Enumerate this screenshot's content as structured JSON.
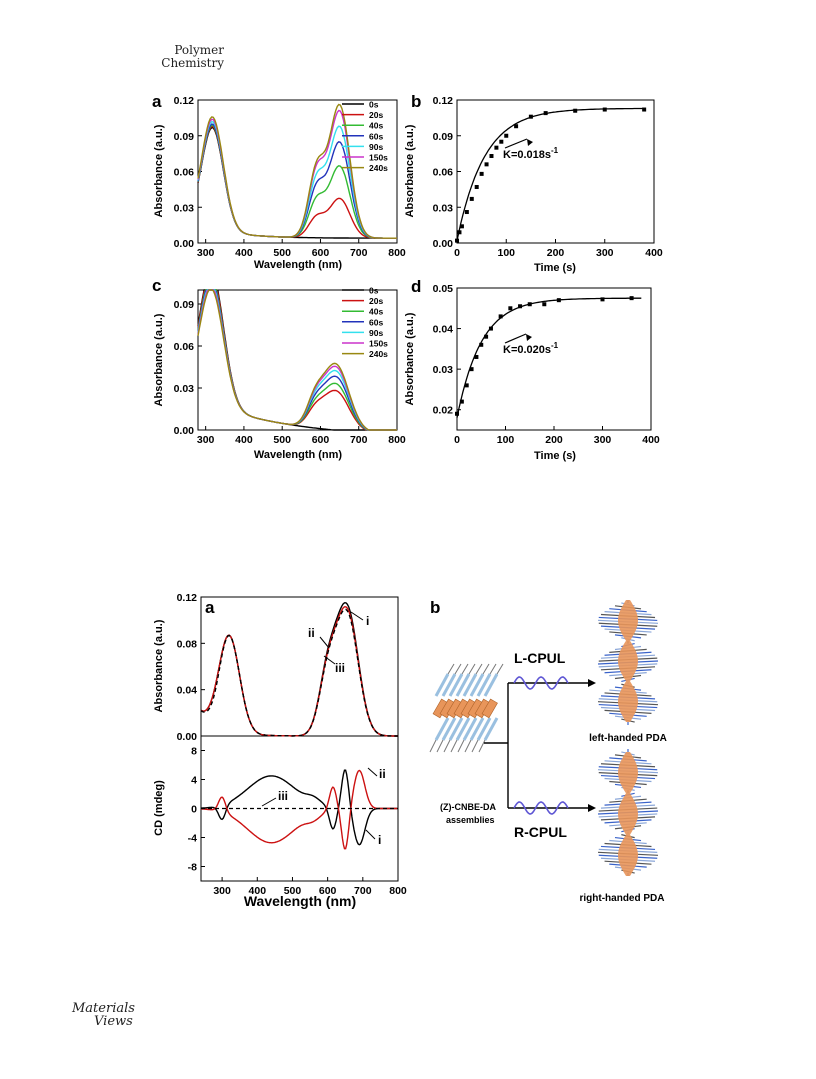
{
  "header": {
    "journal_line1": "Polymer",
    "journal_line2": "Chemistry"
  },
  "footer_logo": {
    "line1": "Materials",
    "line2": "Views"
  },
  "colors": {
    "0s": "#000000",
    "20s": "#cc1111",
    "40s": "#33bb33",
    "60s": "#2233bb",
    "90s": "#33e0ee",
    "150s": "#cc33cc",
    "240s": "#998811",
    "scheme_orange": "#e8955a",
    "scheme_blue": "#3a63c9",
    "scheme_wave": "#5f57d4"
  },
  "chart_data": [
    {
      "panel": "a",
      "type": "line",
      "xlabel": "Wavelength (nm)",
      "ylabel": "Absorbance (a.u.)",
      "xlim": [
        280,
        800
      ],
      "ylim": [
        0,
        0.12
      ],
      "xticks": [
        300,
        400,
        500,
        600,
        700,
        800
      ],
      "yticks": [
        "0.00",
        "0.03",
        "0.06",
        "0.09",
        "0.12"
      ],
      "legend": "top-right",
      "series": [
        {
          "name": "0s",
          "peak": 0.0,
          "uv": 0.085
        },
        {
          "name": "20s",
          "peak": 0.033,
          "uv": 0.086
        },
        {
          "name": "40s",
          "peak": 0.06,
          "uv": 0.087
        },
        {
          "name": "60s",
          "peak": 0.08,
          "uv": 0.088
        },
        {
          "name": "90s",
          "peak": 0.093,
          "uv": 0.09
        },
        {
          "name": "150s",
          "peak": 0.106,
          "uv": 0.092
        },
        {
          "name": "240s",
          "peak": 0.111,
          "uv": 0.094
        }
      ]
    },
    {
      "panel": "b",
      "type": "scatter",
      "xlabel": "Time (s)",
      "ylabel": "Absorbance (a.u.)",
      "xlim": [
        0,
        400
      ],
      "ylim": [
        0,
        0.12
      ],
      "xticks": [
        0,
        100,
        200,
        300,
        400
      ],
      "yticks": [
        "0.00",
        "0.03",
        "0.06",
        "0.09",
        "0.12"
      ],
      "annotation": "K=0.018s",
      "annotation_sup": "-1",
      "points": [
        [
          0,
          0.002
        ],
        [
          5,
          0.009
        ],
        [
          10,
          0.014
        ],
        [
          20,
          0.026
        ],
        [
          30,
          0.037
        ],
        [
          40,
          0.047
        ],
        [
          50,
          0.058
        ],
        [
          60,
          0.066
        ],
        [
          70,
          0.073
        ],
        [
          80,
          0.08
        ],
        [
          90,
          0.085
        ],
        [
          100,
          0.09
        ],
        [
          120,
          0.098
        ],
        [
          150,
          0.106
        ],
        [
          180,
          0.109
        ],
        [
          240,
          0.111
        ],
        [
          300,
          0.112
        ],
        [
          380,
          0.112
        ]
      ],
      "fit": {
        "a0": 0.002,
        "amax": 0.113,
        "k": 0.018
      }
    },
    {
      "panel": "c",
      "type": "line",
      "xlabel": "Wavelength (nm)",
      "ylabel": "Absorbance (a.u.)",
      "xlim": [
        280,
        800
      ],
      "ylim": [
        0,
        0.1
      ],
      "xticks": [
        300,
        400,
        500,
        600,
        700,
        800
      ],
      "yticks": [
        "0.00",
        "0.03",
        "0.06",
        "0.09"
      ],
      "legend": "top-right",
      "series": [
        {
          "name": "0s",
          "peak": 0.0,
          "uv": 0.096
        },
        {
          "name": "20s",
          "peak": 0.028,
          "uv": 0.094
        },
        {
          "name": "40s",
          "peak": 0.033,
          "uv": 0.091
        },
        {
          "name": "60s",
          "peak": 0.038,
          "uv": 0.089
        },
        {
          "name": "90s",
          "peak": 0.042,
          "uv": 0.087
        },
        {
          "name": "150s",
          "peak": 0.045,
          "uv": 0.085
        },
        {
          "name": "240s",
          "peak": 0.047,
          "uv": 0.083
        }
      ]
    },
    {
      "panel": "d",
      "type": "scatter",
      "xlabel": "Time (s)",
      "ylabel": "Absorbance (a.u.)",
      "xlim": [
        0,
        400
      ],
      "ylim": [
        0.015,
        0.05
      ],
      "xticks": [
        0,
        100,
        200,
        300,
        400
      ],
      "yticks": [
        "0.02",
        "0.03",
        "0.04",
        "0.05"
      ],
      "annotation": "K=0.020s",
      "annotation_sup": "-1",
      "points": [
        [
          0,
          0.019
        ],
        [
          10,
          0.022
        ],
        [
          20,
          0.026
        ],
        [
          30,
          0.03
        ],
        [
          40,
          0.033
        ],
        [
          50,
          0.036
        ],
        [
          60,
          0.038
        ],
        [
          70,
          0.04
        ],
        [
          90,
          0.043
        ],
        [
          110,
          0.045
        ],
        [
          130,
          0.0455
        ],
        [
          150,
          0.046
        ],
        [
          180,
          0.046
        ],
        [
          210,
          0.047
        ],
        [
          300,
          0.0472
        ],
        [
          360,
          0.0475
        ]
      ],
      "fit": {
        "a0": 0.018,
        "amax": 0.0475,
        "k": 0.02
      }
    },
    {
      "panel": "a",
      "type": "line",
      "xlabel": "Wavelength (nm)",
      "top": {
        "ylabel": "Absorbance (a.u.)",
        "ylim": [
          0,
          0.12
        ],
        "yticks": [
          "0.00",
          "0.04",
          "0.08",
          "0.12"
        ]
      },
      "bottom": {
        "ylabel": "CD (mdeg)",
        "ylim": [
          -10,
          10
        ],
        "yticks": [
          "8",
          "4",
          "0",
          "-4",
          "-8"
        ]
      },
      "xlim": [
        240,
        800
      ],
      "xticks": [
        300,
        400,
        500,
        600,
        700,
        800
      ],
      "series": [
        {
          "name": "i",
          "style": "solid-black"
        },
        {
          "name": "ii",
          "style": "solid-red"
        },
        {
          "name": "iii",
          "style": "dashed-black"
        }
      ]
    }
  ],
  "scheme": {
    "panel_label": "b",
    "assembly_label_line1": "(Z)-CNBE-DA",
    "assembly_label_line2": "assemblies",
    "top_arrow_label": "L-CPUL",
    "bottom_arrow_label": "R-CPUL",
    "top_result": "left-handed PDA",
    "bottom_result": "right-handed PDA"
  }
}
